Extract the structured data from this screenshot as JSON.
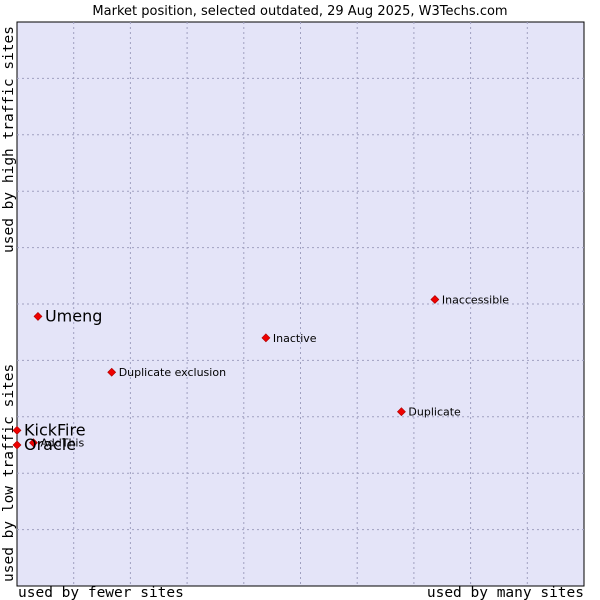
{
  "chart_data": {
    "type": "scatter",
    "title": "Market position, selected outdated, 29 Aug 2025, W3Techs.com",
    "xlabel_left": "used by fewer sites",
    "xlabel_right": "used by many sites",
    "ylabel_bottom": "used by low traffic sites",
    "ylabel_top": "used by high traffic sites",
    "xlim": [
      0,
      100
    ],
    "ylim": [
      0,
      100
    ],
    "grid": true,
    "colors": {
      "background": "#e4e4f8",
      "grid": "#a0a0c0",
      "point": "#ee0000",
      "frame": "#000000"
    },
    "points": [
      {
        "label": "Inaccessible",
        "x": 73.7,
        "y": 50.8,
        "size": "small"
      },
      {
        "label": "Umeng",
        "x": 3.7,
        "y": 47.8,
        "size": "large"
      },
      {
        "label": "Inactive",
        "x": 43.9,
        "y": 44.0,
        "size": "small"
      },
      {
        "label": "Duplicate exclusion",
        "x": 16.7,
        "y": 37.9,
        "size": "small"
      },
      {
        "label": "Duplicate",
        "x": 67.8,
        "y": 30.9,
        "size": "small"
      },
      {
        "label": "KickFire",
        "x": 0.0,
        "y": 27.6,
        "size": "large"
      },
      {
        "label": "AddThis",
        "x": 2.9,
        "y": 25.4,
        "size": "small"
      },
      {
        "label": "Oracle",
        "x": 0.0,
        "y": 25.0,
        "size": "large"
      }
    ]
  }
}
